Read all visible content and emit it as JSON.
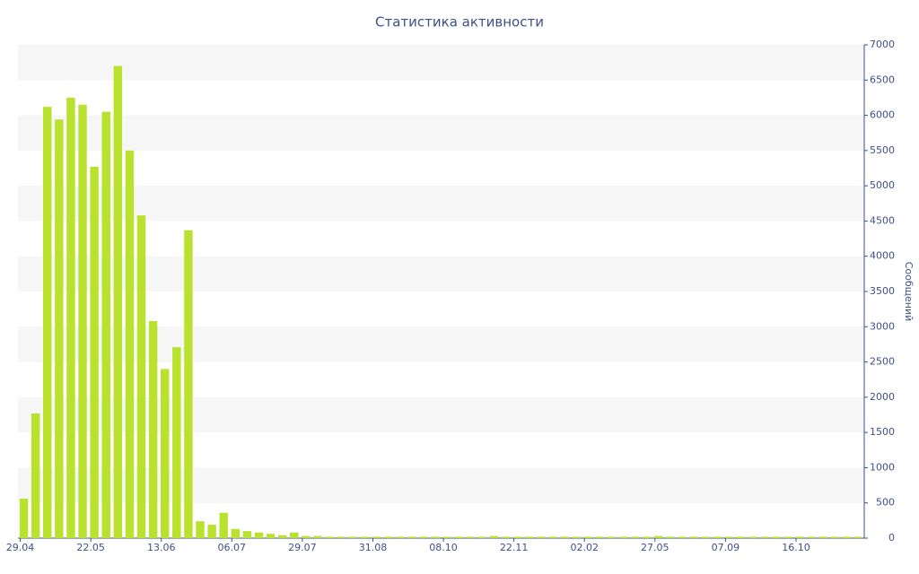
{
  "chart_data": {
    "type": "bar",
    "title": "Статистика активности",
    "y_label": "Сообщений",
    "categories": [
      "29.04",
      null,
      null,
      null,
      null,
      null,
      "22.05",
      null,
      null,
      null,
      null,
      null,
      "13.06",
      null,
      null,
      null,
      null,
      null,
      "06.07",
      null,
      null,
      null,
      null,
      null,
      "29.07",
      null,
      null,
      null,
      null,
      null,
      "31.08",
      null,
      null,
      null,
      null,
      null,
      "08.10",
      null,
      null,
      null,
      null,
      null,
      "22.11",
      null,
      null,
      null,
      null,
      null,
      "02.02",
      null,
      null,
      null,
      null,
      null,
      "27.05",
      null,
      null,
      null,
      null,
      null,
      "07.09",
      null,
      null,
      null,
      null,
      null,
      "16.10",
      null,
      null,
      null,
      null,
      null
    ],
    "values": [
      560,
      1770,
      6120,
      5940,
      6250,
      6150,
      5270,
      6050,
      6700,
      5500,
      4580,
      3080,
      2400,
      2710,
      4370,
      240,
      190,
      360,
      130,
      100,
      80,
      60,
      40,
      80,
      30,
      30,
      20,
      20,
      20,
      20,
      20,
      20,
      20,
      20,
      20,
      20,
      20,
      20,
      20,
      20,
      30,
      20,
      20,
      20,
      20,
      20,
      20,
      20,
      20,
      20,
      20,
      20,
      20,
      20,
      30,
      20,
      20,
      20,
      20,
      20,
      20,
      20,
      20,
      20,
      20,
      20,
      20,
      20,
      20,
      20,
      20,
      20
    ],
    "color": "#b8e22e",
    "ylim": [
      0,
      7000
    ],
    "yticks": [
      0,
      500,
      1000,
      1500,
      2000,
      2500,
      3000,
      3500,
      4000,
      4500,
      5000,
      5500,
      6000,
      6500,
      7000
    ],
    "y_axis_side": "right",
    "grid": true
  }
}
